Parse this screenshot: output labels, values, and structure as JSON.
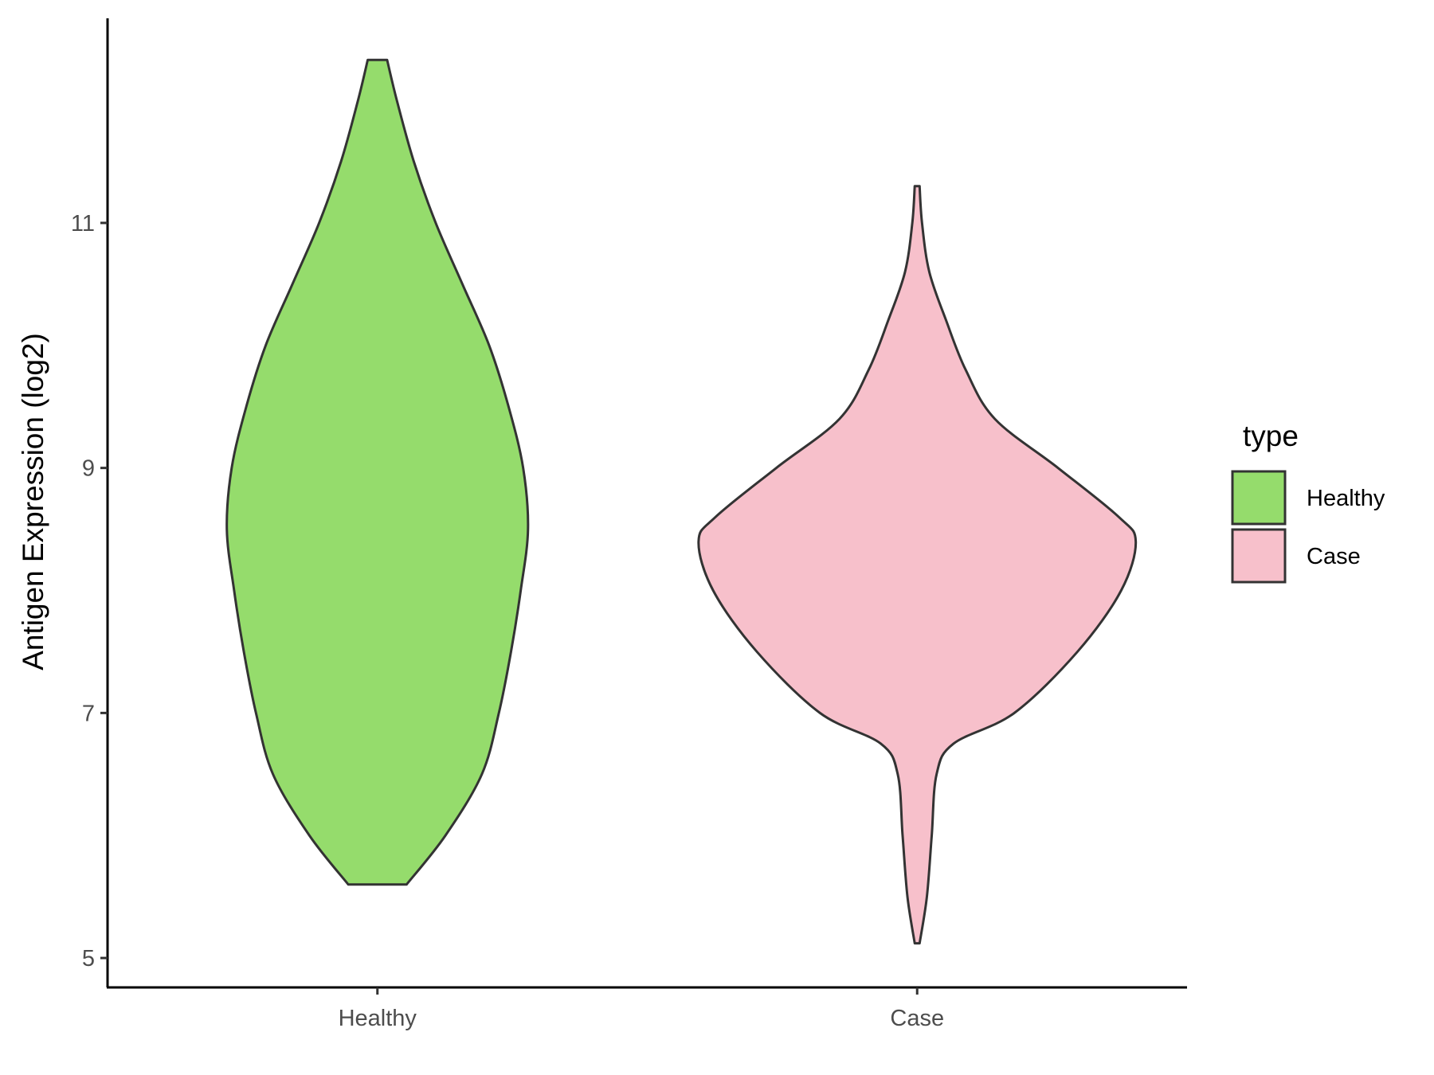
{
  "chart_data": {
    "type": "violin",
    "title": "",
    "xlabel": "",
    "ylabel": "Antigen Expression (log2)",
    "ylim": [
      4.76,
      12.67
    ],
    "yticks": [
      5,
      7,
      9,
      11
    ],
    "categories": [
      "Healthy",
      "Case"
    ],
    "legend": {
      "title": "type",
      "position": "right",
      "entries": [
        {
          "label": "Healthy",
          "color": "#95DC6C"
        },
        {
          "label": "Case",
          "color": "#F7C0CB"
        }
      ]
    },
    "grid": false,
    "series": [
      {
        "name": "Healthy",
        "color": "#95DC6C",
        "min": 5.6,
        "max": 12.33,
        "density": [
          [
            5.6,
            0.12
          ],
          [
            6.0,
            0.28
          ],
          [
            6.5,
            0.43
          ],
          [
            7.0,
            0.5
          ],
          [
            7.5,
            0.55
          ],
          [
            8.0,
            0.59
          ],
          [
            8.5,
            0.62
          ],
          [
            9.0,
            0.6
          ],
          [
            9.5,
            0.54
          ],
          [
            10.0,
            0.46
          ],
          [
            10.5,
            0.35
          ],
          [
            11.0,
            0.24
          ],
          [
            11.5,
            0.15
          ],
          [
            12.0,
            0.08
          ],
          [
            12.33,
            0.04
          ]
        ]
      },
      {
        "name": "Case",
        "color": "#F7C0CB",
        "min": 5.12,
        "max": 11.3,
        "density": [
          [
            5.12,
            0.01
          ],
          [
            5.5,
            0.04
          ],
          [
            6.0,
            0.06
          ],
          [
            6.5,
            0.08
          ],
          [
            6.75,
            0.15
          ],
          [
            7.0,
            0.4
          ],
          [
            7.5,
            0.66
          ],
          [
            8.0,
            0.84
          ],
          [
            8.4,
            0.9
          ],
          [
            8.6,
            0.83
          ],
          [
            9.0,
            0.58
          ],
          [
            9.4,
            0.32
          ],
          [
            9.8,
            0.2
          ],
          [
            10.2,
            0.12
          ],
          [
            10.6,
            0.05
          ],
          [
            11.0,
            0.02
          ],
          [
            11.3,
            0.01
          ]
        ]
      }
    ]
  }
}
